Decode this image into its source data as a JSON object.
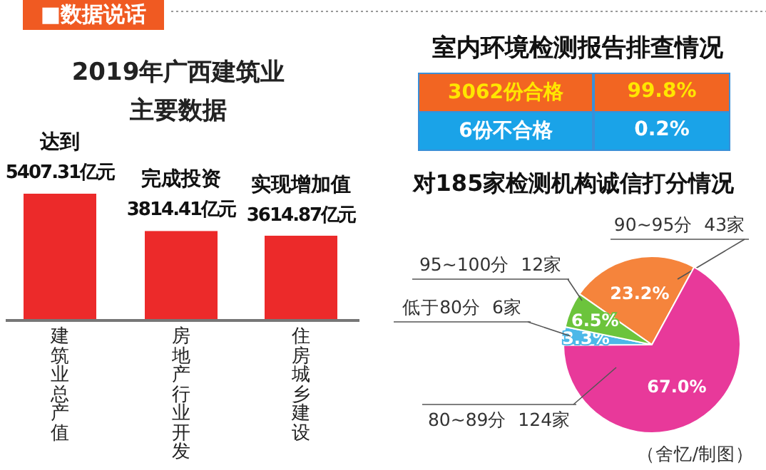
{
  "chart_data": [
    {
      "type": "bar",
      "title": "2019年广西建筑业主要数据",
      "categories": [
        "建筑业总产值",
        "房地产行业开发",
        "住房城乡建设"
      ],
      "values": [
        5407.31,
        3814.41,
        3614.87
      ],
      "value_labels": [
        "5407.31亿元",
        "3814.41亿元",
        "3614.87亿元"
      ],
      "color": "#ec2a2a",
      "annotations": [
        "■数据说话",
        {
          "text": "达到",
          "x": "建筑业总产值",
          "y": 5407.31
        },
        {
          "text": "完成投资",
          "x": "房地产行业开发",
          "y": 3814.41
        },
        {
          "text": "实现增加值",
          "x": "住房城乡建设",
          "y": 3614.87
        }
      ]
    },
    {
      "type": "other",
      "title": "室内环境检测报告排查情况",
      "categories": [
        "3062份合格",
        "6份不合格"
      ],
      "value_labels": [
        "99.8%",
        "0.2%"
      ],
      "colors": [
        "#f26522",
        "#1aa3e8"
      ]
    },
    {
      "type": "pie",
      "title": "对185家检测机构诚信打分情况",
      "categories": [
        "90~95分  43家",
        "80~89分  124家",
        "低于80分  6家",
        "95~100分  12家"
      ],
      "values": [
        23.2,
        67.0,
        3.3,
        6.5
      ],
      "value_labels": [
        "23.2%",
        "67.0%",
        "3.3%",
        "6.5%"
      ],
      "colors": [
        "#f5843c",
        "#e8399a",
        "#4cb8e8",
        "#6cc43c"
      ],
      "annotations": [
        "（舍忆/制图）"
      ]
    }
  ]
}
